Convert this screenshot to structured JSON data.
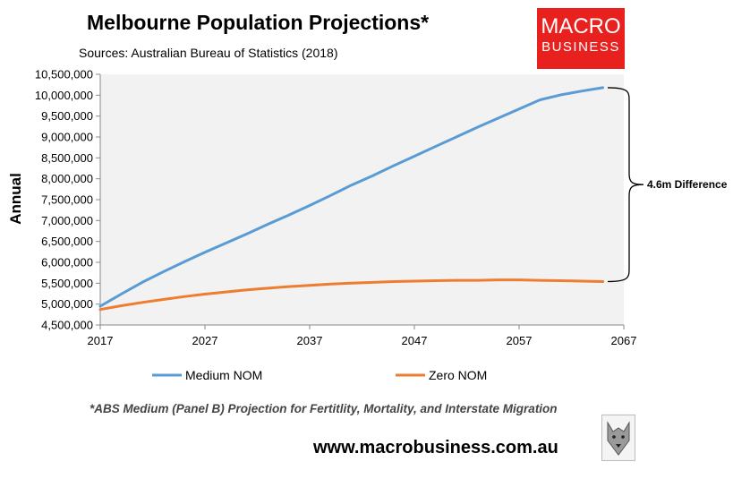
{
  "header": {
    "title": "Melbourne Population Projections*",
    "subtitle": "Sources: Australian Bureau of Statistics (2018)"
  },
  "logo": {
    "line1": "MACRO",
    "line2": "BUSINESS"
  },
  "footer": {
    "footnote": "*ABS Medium (Panel B) Projection for Fertitlity, Mortality, and Interstate Migration",
    "website": "www.macrobusiness.com.au",
    "emblem_icon": "wolf-head-icon"
  },
  "colors": {
    "medium": "#5b9bd5",
    "zero": "#ed7d31",
    "plot_bg": "#f2f2f2"
  },
  "chart_data": {
    "type": "line",
    "title": "Melbourne Population Projections*",
    "ylabel": "Annual",
    "xlabel": "",
    "xlim": [
      2017,
      2067
    ],
    "ylim": [
      4500000,
      10500000
    ],
    "x_ticks": [
      2017,
      2027,
      2037,
      2047,
      2057,
      2067
    ],
    "y_ticks": [
      4500000,
      5000000,
      5500000,
      6000000,
      6500000,
      7000000,
      7500000,
      8000000,
      8500000,
      9000000,
      9500000,
      10000000,
      10500000
    ],
    "x_tick_labels": [
      "2017",
      "2027",
      "2037",
      "2047",
      "2057",
      "2067"
    ],
    "y_tick_labels": [
      "4,500,000",
      "5,000,000",
      "5,500,000",
      "6,000,000",
      "6,500,000",
      "7,000,000",
      "7,500,000",
      "8,000,000",
      "8,500,000",
      "9,000,000",
      "9,500,000",
      "10,000,000",
      "10,500,000"
    ],
    "grid": false,
    "legend": "bottom",
    "series": [
      {
        "name": "Medium NOM",
        "x": [
          2017,
          2019,
          2021,
          2023,
          2025,
          2027,
          2029,
          2031,
          2033,
          2035,
          2037,
          2039,
          2041,
          2043,
          2045,
          2047,
          2049,
          2051,
          2053,
          2055,
          2057,
          2059,
          2061,
          2063,
          2065
        ],
        "values": [
          4950000,
          5240000,
          5520000,
          5770000,
          6010000,
          6240000,
          6460000,
          6680000,
          6910000,
          7130000,
          7360000,
          7600000,
          7850000,
          8070000,
          8310000,
          8540000,
          8770000,
          9000000,
          9230000,
          9450000,
          9670000,
          9890000,
          10010000,
          10100000,
          10180000
        ]
      },
      {
        "name": "Zero NOM",
        "x": [
          2017,
          2019,
          2021,
          2023,
          2025,
          2027,
          2029,
          2031,
          2033,
          2035,
          2037,
          2039,
          2041,
          2043,
          2045,
          2047,
          2049,
          2051,
          2053,
          2055,
          2057,
          2059,
          2061,
          2063,
          2065
        ],
        "values": [
          4870000,
          4960000,
          5040000,
          5110000,
          5180000,
          5240000,
          5290000,
          5340000,
          5380000,
          5420000,
          5450000,
          5480000,
          5500000,
          5520000,
          5540000,
          5550000,
          5560000,
          5570000,
          5570000,
          5580000,
          5580000,
          5570000,
          5560000,
          5550000,
          5540000
        ]
      }
    ],
    "annotations": [
      {
        "text": "4.6m Difference",
        "x_from": 2065,
        "y_from": 5540000,
        "y_to": 10180000
      }
    ]
  }
}
